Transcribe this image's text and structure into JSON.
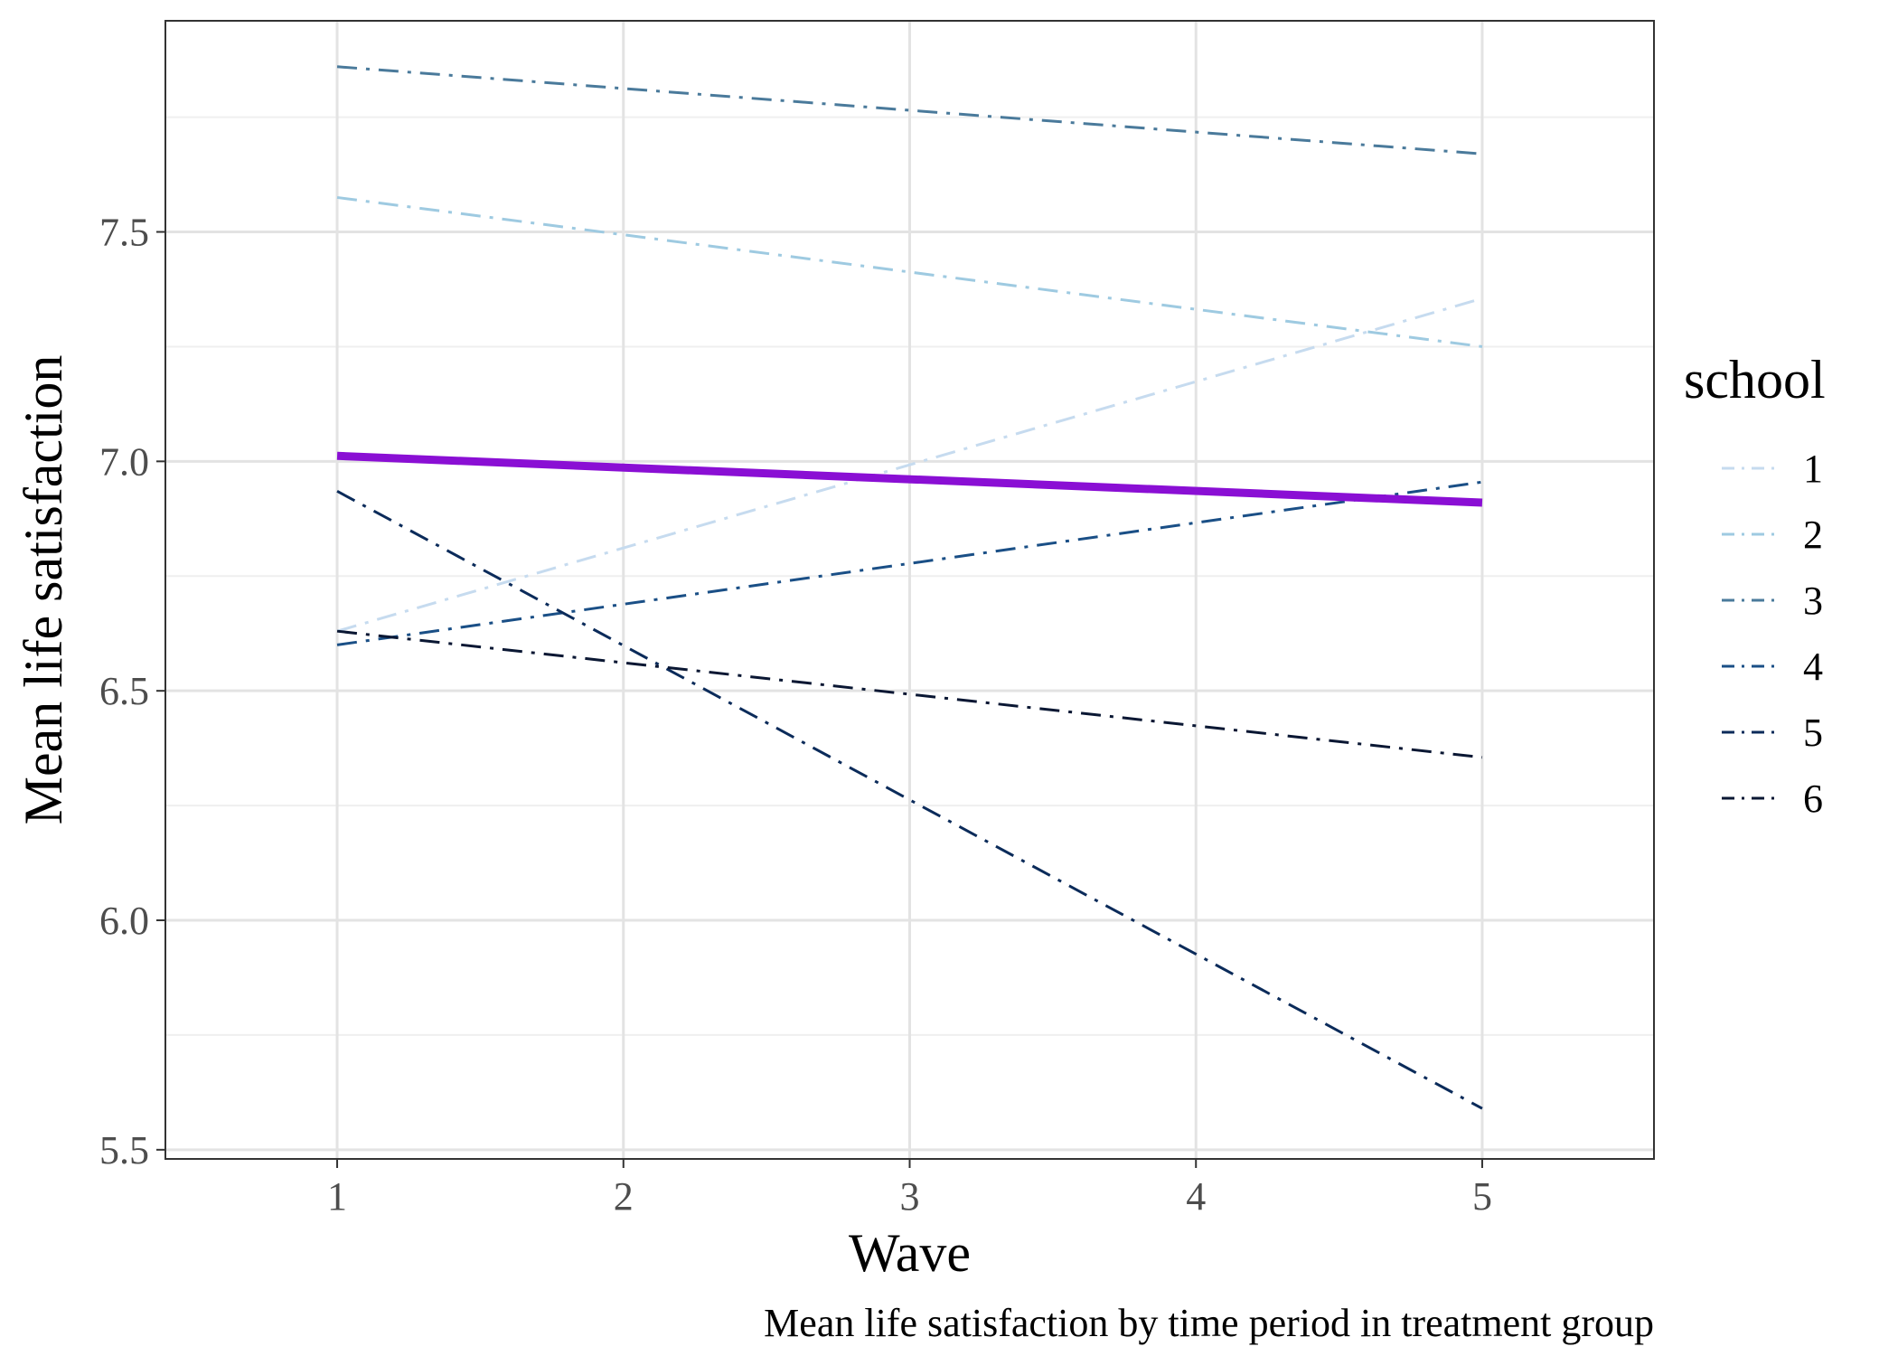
{
  "chart_data": {
    "type": "line",
    "xlabel": "Wave",
    "ylabel": "Mean life satisfaction",
    "caption": "Mean life satisfaction by time period in treatment group",
    "x": [
      1,
      5
    ],
    "xlim": [
      0.4,
      5.6
    ],
    "ylim": [
      5.48,
      7.96
    ],
    "x_ticks": [
      "1",
      "2",
      "3",
      "4",
      "5"
    ],
    "y_ticks": [
      "5.5",
      "6.0",
      "6.5",
      "7.0",
      "7.5"
    ],
    "grid": true,
    "legend": {
      "title": "school",
      "position": "right"
    },
    "series": [
      {
        "name": "1",
        "values": [
          6.63,
          7.355
        ],
        "color": "#c6dbef",
        "dash": "dashdot"
      },
      {
        "name": "2",
        "values": [
          7.575,
          7.25
        ],
        "color": "#9ecae1",
        "dash": "dashdot"
      },
      {
        "name": "3",
        "values": [
          7.86,
          7.67
        ],
        "color": "#4a7a9b",
        "dash": "dashdot"
      },
      {
        "name": "4",
        "values": [
          6.6,
          6.955
        ],
        "color": "#1a4f86",
        "dash": "dashdot"
      },
      {
        "name": "5",
        "values": [
          6.935,
          5.59
        ],
        "color": "#0b2b5a",
        "dash": "dashdot"
      },
      {
        "name": "6",
        "values": [
          6.63,
          6.355
        ],
        "color": "#0a1733",
        "dash": "dashdot"
      }
    ],
    "overall": {
      "values": [
        7.012,
        6.91
      ],
      "color": "#8a0fd4"
    }
  }
}
